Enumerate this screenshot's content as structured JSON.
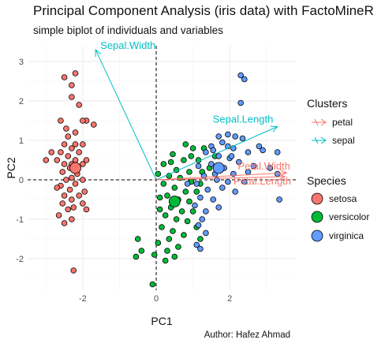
{
  "title": "Principal Component Analysis (iris data) with FactoMineR",
  "subtitle": "simple biplot of individuals and variables",
  "caption": "Author: Hafez Ahmad",
  "legends": {
    "clusters": {
      "title": "Clusters",
      "items": [
        {
          "label": "petal",
          "color": "#f8766d"
        },
        {
          "label": "sepal",
          "color": "#00bfc4"
        }
      ]
    },
    "species": {
      "title": "Species",
      "items": [
        {
          "label": "setosa",
          "color": "#f8766d"
        },
        {
          "label": "versicolor",
          "color": "#00ba38"
        },
        {
          "label": "virginica",
          "color": "#619cff"
        }
      ]
    }
  },
  "chart_data": {
    "type": "scatter",
    "xlabel": "PC1",
    "ylabel": "PC2",
    "xlim": [
      -3.5,
      3.8
    ],
    "ylim": [
      -2.8,
      3.4
    ],
    "xticks": [
      -2,
      0,
      2
    ],
    "yticks": [
      -2,
      -1,
      0,
      1,
      2,
      3
    ],
    "grid": true,
    "series": [
      {
        "name": "setosa",
        "color": "#f8766d",
        "points": [
          [
            -2.3,
            2.4
          ],
          [
            -2.5,
            2.6
          ],
          [
            -2.3,
            2.1
          ],
          [
            -2.2,
            2.7
          ],
          [
            -2.1,
            1.9
          ],
          [
            -2.45,
            1.3
          ],
          [
            -1.9,
            1.5
          ],
          [
            -2.6,
            1.5
          ],
          [
            -2.0,
            1.5
          ],
          [
            -1.7,
            1.4
          ],
          [
            -2.2,
            1.2
          ],
          [
            -2.4,
            1.1
          ],
          [
            -2.5,
            0.9
          ],
          [
            -2.2,
            0.9
          ],
          [
            -2.0,
            0.9
          ],
          [
            -2.3,
            0.8
          ],
          [
            -2.6,
            0.7
          ],
          [
            -2.1,
            0.7
          ],
          [
            -2.4,
            0.6
          ],
          [
            -2.2,
            0.5
          ],
          [
            -1.9,
            0.5
          ],
          [
            -2.7,
            0.5
          ],
          [
            -2.5,
            0.4
          ],
          [
            -2.3,
            0.4
          ],
          [
            -2.0,
            0.4
          ],
          [
            -2.35,
            0.3
          ],
          [
            -2.55,
            0.2
          ],
          [
            -2.15,
            0.15
          ],
          [
            -2.3,
            0.05
          ],
          [
            -2.0,
            0.0
          ],
          [
            -2.45,
            0.0
          ],
          [
            -2.2,
            -0.1
          ],
          [
            -2.6,
            -0.15
          ],
          [
            -2.35,
            -0.25
          ],
          [
            -1.95,
            -0.3
          ],
          [
            -2.1,
            -0.4
          ],
          [
            -2.5,
            -0.4
          ],
          [
            -2.3,
            -0.5
          ],
          [
            -2.55,
            -0.6
          ],
          [
            -2.0,
            -0.6
          ],
          [
            -2.25,
            -0.7
          ],
          [
            -2.4,
            -0.75
          ],
          [
            -1.9,
            -0.75
          ],
          [
            -2.65,
            -0.9
          ],
          [
            -2.3,
            -1.0
          ],
          [
            -2.5,
            -1.1
          ],
          [
            -2.25,
            -2.3
          ],
          [
            -3.0,
            0.5
          ],
          [
            -2.85,
            0.7
          ],
          [
            -2.7,
            -0.2
          ]
        ],
        "centroid": [
          -2.2,
          0.3
        ]
      },
      {
        "name": "versicolor",
        "color": "#00ba38",
        "points": [
          [
            0.8,
            0.9
          ],
          [
            0.45,
            0.65
          ],
          [
            1.0,
            0.8
          ],
          [
            1.3,
            0.8
          ],
          [
            0.95,
            0.6
          ],
          [
            0.4,
            0.45
          ],
          [
            0.75,
            0.5
          ],
          [
            1.15,
            0.5
          ],
          [
            1.6,
            0.6
          ],
          [
            0.2,
            0.4
          ],
          [
            0.55,
            0.25
          ],
          [
            0.9,
            0.2
          ],
          [
            1.25,
            0.2
          ],
          [
            1.45,
            0.3
          ],
          [
            0.05,
            0.15
          ],
          [
            0.35,
            0.1
          ],
          [
            0.65,
            0.05
          ],
          [
            0.95,
            -0.05
          ],
          [
            1.2,
            -0.1
          ],
          [
            0.2,
            -0.1
          ],
          [
            0.5,
            -0.2
          ],
          [
            0.8,
            -0.3
          ],
          [
            1.1,
            -0.3
          ],
          [
            0.3,
            -0.4
          ],
          [
            0.6,
            -0.5
          ],
          [
            0.9,
            -0.55
          ],
          [
            0.1,
            -0.45
          ],
          [
            0.4,
            -0.7
          ],
          [
            0.7,
            -0.8
          ],
          [
            1.0,
            -0.8
          ],
          [
            0.25,
            -0.9
          ],
          [
            0.55,
            -1.0
          ],
          [
            0.85,
            -1.05
          ],
          [
            0.15,
            -1.2
          ],
          [
            0.45,
            -1.3
          ],
          [
            0.75,
            -1.4
          ],
          [
            1.1,
            -1.2
          ],
          [
            1.2,
            -1.5
          ],
          [
            0.05,
            -1.6
          ],
          [
            0.35,
            -1.5
          ],
          [
            0.6,
            -1.7
          ],
          [
            0.3,
            -1.8
          ],
          [
            -0.05,
            -1.9
          ],
          [
            0.25,
            -2.05
          ],
          [
            -0.5,
            -1.5
          ],
          [
            -0.4,
            -1.8
          ],
          [
            -0.55,
            -1.95
          ],
          [
            0.5,
            -1.95
          ],
          [
            -0.1,
            -2.65
          ],
          [
            0.1,
            -0.75
          ]
        ],
        "centroid": [
          0.5,
          -0.55
        ]
      },
      {
        "name": "virginica",
        "color": "#619cff",
        "points": [
          [
            2.3,
            2.65
          ],
          [
            2.4,
            2.55
          ],
          [
            2.3,
            1.95
          ],
          [
            1.7,
            1.1
          ],
          [
            1.95,
            1.15
          ],
          [
            2.15,
            1.1
          ],
          [
            2.35,
            1.05
          ],
          [
            2.8,
            0.85
          ],
          [
            1.5,
            0.85
          ],
          [
            1.8,
            0.95
          ],
          [
            2.1,
            0.8
          ],
          [
            2.5,
            0.7
          ],
          [
            1.35,
            0.7
          ],
          [
            1.7,
            0.6
          ],
          [
            2.0,
            0.55
          ],
          [
            2.25,
            0.45
          ],
          [
            2.65,
            0.35
          ],
          [
            1.15,
            0.35
          ],
          [
            1.5,
            0.4
          ],
          [
            1.85,
            0.3
          ],
          [
            2.1,
            0.15
          ],
          [
            2.5,
            0.2
          ],
          [
            3.1,
            0.3
          ],
          [
            3.3,
            0.15
          ],
          [
            1.3,
            0.1
          ],
          [
            1.65,
            0.0
          ],
          [
            1.95,
            -0.05
          ],
          [
            1.1,
            -0.1
          ],
          [
            1.4,
            -0.25
          ],
          [
            1.8,
            -0.2
          ],
          [
            2.15,
            -0.3
          ],
          [
            1.2,
            -0.45
          ],
          [
            1.55,
            -0.5
          ],
          [
            1.05,
            -0.65
          ],
          [
            1.35,
            -0.8
          ],
          [
            1.7,
            -0.7
          ],
          [
            1.25,
            -1.0
          ],
          [
            1.15,
            -1.15
          ],
          [
            1.35,
            -1.35
          ],
          [
            1.1,
            -1.65
          ],
          [
            1.2,
            -1.75
          ],
          [
            3.3,
            0.7
          ],
          [
            2.9,
            0.75
          ],
          [
            0.85,
            -0.1
          ],
          [
            1.55,
            0.75
          ],
          [
            2.4,
            -0.05
          ],
          [
            2.05,
            0.6
          ],
          [
            1.6,
            0.15
          ],
          [
            3.35,
            -0.5
          ],
          [
            1.95,
            0.85
          ]
        ],
        "centroid": [
          1.7,
          0.3
        ]
      }
    ],
    "variables": [
      {
        "name": "Sepal.Width",
        "cluster": "sepal",
        "x": -1.65,
        "y": 3.3
      },
      {
        "name": "Sepal.Length",
        "cluster": "sepal",
        "x": 3.3,
        "y": 1.35
      },
      {
        "name": "Petal.Width",
        "cluster": "petal",
        "x": 3.55,
        "y": 0.18
      },
      {
        "name": "Petal.Length",
        "cluster": "petal",
        "x": 3.5,
        "y": 0.08
      }
    ]
  }
}
